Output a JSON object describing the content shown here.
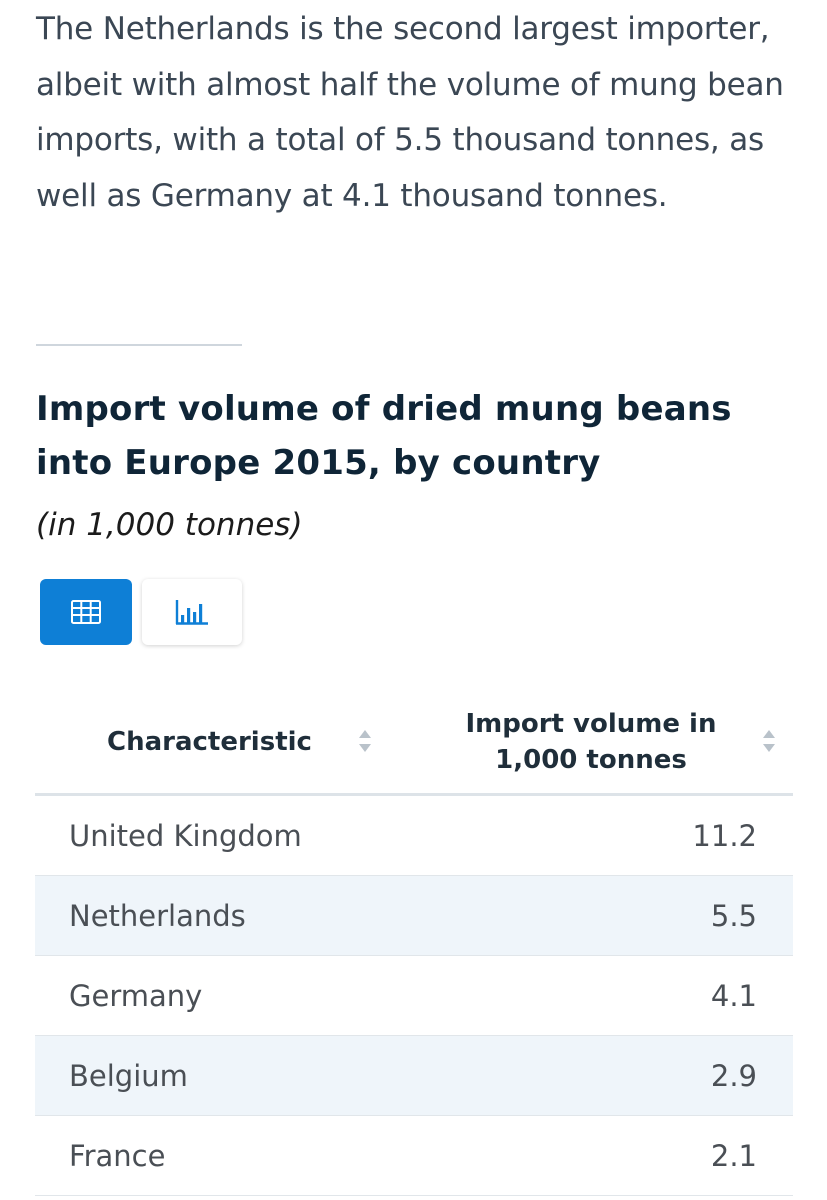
{
  "article": {
    "intro_text": "The Netherlands is the second largest importer, albeit with almost half the volume of mung bean imports, with a total of 5.5 thousand tonnes, as well as Germany at 4.1 thousand tonnes."
  },
  "chart": {
    "title": "Import volume of dried mung beans into Europe 2015, by country",
    "subtitle": "(in 1,000 tonnes)",
    "view_toggle": {
      "active": "table",
      "table_icon": "table-grid-icon",
      "chart_icon": "bar-chart-icon",
      "active_color": "#0e7fd6"
    }
  },
  "table": {
    "headers": {
      "characteristic": "Characteristic",
      "value": "Import volume in 1,000 tonnes"
    },
    "rows": [
      {
        "name": "United Kingdom",
        "value": "11.2"
      },
      {
        "name": "Netherlands",
        "value": "5.5"
      },
      {
        "name": "Germany",
        "value": "4.1"
      },
      {
        "name": "Belgium",
        "value": "2.9"
      },
      {
        "name": "France",
        "value": "2.1"
      }
    ]
  }
}
